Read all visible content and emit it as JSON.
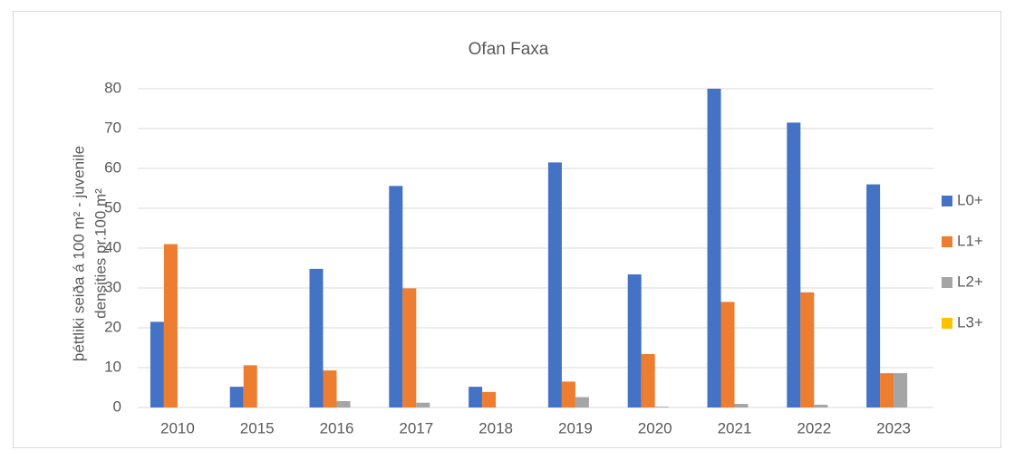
{
  "chart_data": {
    "type": "bar",
    "title": "Ofan Faxa",
    "y_label": [
      "þéttliki seiða á 100 m² - juvenile",
      "densities  pr.100 m²"
    ],
    "categories": [
      "2010",
      "2015",
      "2016",
      "2017",
      "2018",
      "2019",
      "2020",
      "2021",
      "2022",
      "2023"
    ],
    "series": [
      {
        "name": "L0+",
        "color": "#4472c4",
        "values": [
          21.5,
          5.2,
          34.8,
          55.6,
          5.2,
          61.5,
          33.4,
          80,
          71.5,
          56
        ]
      },
      {
        "name": "L1+",
        "color": "#ed7d31",
        "values": [
          41,
          10.6,
          9.3,
          29.9,
          3.9,
          6.5,
          13.4,
          26.5,
          28.9,
          8.6
        ]
      },
      {
        "name": "L2+",
        "color": "#a5a5a5",
        "values": [
          0,
          0,
          1.6,
          1.2,
          0,
          2.6,
          0.2,
          0.9,
          0.7,
          8.6
        ]
      },
      {
        "name": "L3+",
        "color": "#ffc000",
        "values": [
          0,
          0,
          0,
          0,
          0,
          0,
          0,
          0,
          0,
          0
        ]
      }
    ],
    "ylim": [
      0,
      80
    ],
    "yticks": [
      0,
      10,
      20,
      30,
      40,
      50,
      60,
      70,
      80
    ],
    "grid": true,
    "legend": "right"
  }
}
